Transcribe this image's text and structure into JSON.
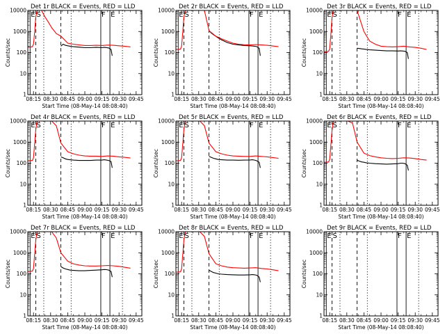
{
  "figure": {
    "type": "line",
    "panel_rows": 3,
    "panel_cols": 3,
    "ylabel": "Counts/sec",
    "xlabel": "Start Time (08-May-14 08:08:40)",
    "x_tick_labels": [
      "08:15",
      "08:30",
      "08:45",
      "09:00",
      "09:15",
      "09:30",
      "09:45"
    ],
    "x_tick_minutes": [
      0,
      15,
      30,
      45,
      60,
      75,
      90
    ],
    "x_range_minutes": [
      -5,
      95
    ],
    "y_scale": "log",
    "y_tick_labels": [
      "1",
      "10",
      "100",
      "1000",
      "10000"
    ],
    "ylim": [
      1,
      10000
    ],
    "colors": {
      "events": "#000000",
      "lld": "#ff0000"
    },
    "event_marks": [
      {
        "label": "E",
        "minute": -3,
        "style": "solid"
      },
      {
        "label": "S",
        "minute": 2,
        "style": "dashed"
      },
      {
        "label": "F",
        "minute": 59,
        "style": "solid"
      },
      {
        "label": "E",
        "minute": 67,
        "style": "solid"
      }
    ],
    "reference_lines": [
      {
        "minute": 9,
        "style": "dotted"
      },
      {
        "minute": 24,
        "style": "dashed"
      },
      {
        "minute": 33,
        "style": "dotted"
      },
      {
        "minute": 78,
        "style": "dotted"
      }
    ]
  },
  "chart_data": [
    {
      "title": "Det 1r BLACK = Events, RED = LLD",
      "type": "line",
      "has_data": true,
      "series": [
        {
          "name": "Events",
          "color": "#000000",
          "x": [
            24,
            26,
            28,
            30,
            32,
            35,
            40,
            45,
            50,
            55,
            60,
            62,
            64,
            66,
            68,
            69
          ],
          "y": [
            200,
            250,
            220,
            210,
            200,
            190,
            180,
            170,
            170,
            175,
            170,
            175,
            172,
            165,
            140,
            70
          ]
        },
        {
          "name": "LLD",
          "color": "#ff0000",
          "x": [
            -5,
            -3,
            -1,
            0,
            1,
            2,
            3,
            4,
            5,
            7,
            10,
            13,
            16,
            20,
            24,
            30,
            35,
            40,
            45,
            50,
            55,
            60,
            65,
            70,
            75,
            80,
            85
          ],
          "y": [
            180,
            180,
            190,
            250,
            900,
            5000,
            9000,
            10000,
            10000,
            10000,
            5000,
            2800,
            1500,
            800,
            600,
            280,
            250,
            230,
            215,
            215,
            220,
            215,
            225,
            220,
            210,
            200,
            185
          ]
        }
      ]
    },
    {
      "title": "Det 2r BLACK = Events, RED = LLD",
      "type": "line",
      "has_data": true,
      "series": [
        {
          "name": "Events",
          "color": "#000000",
          "x": [
            24,
            26,
            28,
            30,
            32,
            35,
            40,
            45,
            50,
            55,
            60,
            62,
            64,
            66,
            68,
            69
          ],
          "y": [
            1100,
            850,
            700,
            600,
            500,
            400,
            300,
            250,
            230,
            215,
            210,
            205,
            200,
            190,
            160,
            70
          ]
        },
        {
          "name": "LLD",
          "color": "#ff0000",
          "x": [
            -5,
            -3,
            -1,
            0,
            1,
            2,
            3,
            4,
            5,
            7,
            10,
            13,
            16,
            20,
            24,
            30,
            35,
            40,
            45,
            50,
            55,
            60,
            65,
            70,
            75,
            80,
            85
          ],
          "y": [
            140,
            140,
            145,
            200,
            900,
            5000,
            9000,
            10000,
            10000,
            10000,
            10000,
            10000,
            10000,
            10000,
            1100,
            600,
            450,
            350,
            280,
            250,
            235,
            230,
            240,
            230,
            220,
            205,
            190
          ]
        }
      ]
    },
    {
      "title": "Det 3r BLACK = Events, RED = LLD",
      "type": "line",
      "has_data": true,
      "series": [
        {
          "name": "Events",
          "color": "#000000",
          "x": [
            24,
            26,
            28,
            30,
            32,
            35,
            40,
            45,
            50,
            55,
            60,
            62,
            64,
            66,
            68,
            69
          ],
          "y": [
            160,
            155,
            150,
            145,
            140,
            135,
            130,
            125,
            120,
            120,
            118,
            120,
            118,
            115,
            100,
            50
          ]
        },
        {
          "name": "LLD",
          "color": "#ff0000",
          "x": [
            -5,
            -3,
            -1,
            0,
            1,
            2,
            3,
            4,
            5,
            7,
            10,
            13,
            16,
            20,
            24,
            30,
            35,
            40,
            45,
            50,
            55,
            60,
            65,
            70,
            75,
            80,
            85
          ],
          "y": [
            110,
            110,
            115,
            150,
            700,
            4500,
            9000,
            10000,
            10000,
            10000,
            10000,
            10000,
            10000,
            10000,
            10000,
            1000,
            350,
            250,
            200,
            190,
            185,
            190,
            200,
            185,
            175,
            160,
            140
          ]
        }
      ]
    },
    {
      "title": "Det 4r BLACK = Events, RED = LLD",
      "type": "line",
      "has_data": true,
      "series": [
        {
          "name": "Events",
          "color": "#000000",
          "x": [
            24,
            26,
            28,
            30,
            32,
            35,
            40,
            45,
            50,
            55,
            60,
            62,
            64,
            66,
            68,
            69
          ],
          "y": [
            200,
            180,
            160,
            150,
            145,
            140,
            135,
            135,
            135,
            140,
            140,
            145,
            140,
            135,
            120,
            60
          ]
        },
        {
          "name": "LLD",
          "color": "#ff0000",
          "x": [
            -5,
            -3,
            -1,
            0,
            1,
            2,
            3,
            4,
            5,
            7,
            10,
            13,
            16,
            20,
            24,
            30,
            35,
            40,
            45,
            50,
            55,
            60,
            65,
            70,
            75,
            80,
            85
          ],
          "y": [
            130,
            130,
            135,
            180,
            800,
            4000,
            9000,
            10000,
            10000,
            10000,
            10000,
            10000,
            10000,
            6000,
            900,
            350,
            280,
            240,
            220,
            215,
            215,
            210,
            220,
            215,
            200,
            190,
            175
          ]
        }
      ]
    },
    {
      "title": "Det 5r BLACK = Events, RED = LLD",
      "type": "line",
      "has_data": true,
      "series": [
        {
          "name": "Events",
          "color": "#000000",
          "x": [
            24,
            26,
            28,
            30,
            32,
            35,
            40,
            45,
            50,
            55,
            60,
            62,
            64,
            66,
            68,
            69
          ],
          "y": [
            210,
            190,
            170,
            160,
            150,
            145,
            140,
            140,
            138,
            140,
            142,
            145,
            140,
            130,
            110,
            60
          ]
        },
        {
          "name": "LLD",
          "color": "#ff0000",
          "x": [
            -5,
            -3,
            -1,
            0,
            1,
            2,
            3,
            4,
            5,
            7,
            10,
            13,
            16,
            20,
            24,
            30,
            35,
            40,
            45,
            50,
            55,
            60,
            65,
            70,
            75,
            80,
            85
          ],
          "y": [
            130,
            130,
            135,
            180,
            800,
            4000,
            9000,
            10000,
            10000,
            10000,
            10000,
            10000,
            10000,
            6000,
            900,
            350,
            280,
            240,
            220,
            215,
            210,
            210,
            220,
            210,
            200,
            185,
            170
          ]
        }
      ]
    },
    {
      "title": "Det 6r BLACK = Events, RED = LLD",
      "type": "line",
      "has_data": true,
      "series": [
        {
          "name": "Events",
          "color": "#000000",
          "x": [
            24,
            26,
            28,
            30,
            32,
            35,
            40,
            45,
            50,
            55,
            60,
            62,
            64,
            66,
            68,
            69
          ],
          "y": [
            140,
            125,
            115,
            110,
            105,
            100,
            95,
            92,
            90,
            92,
            95,
            100,
            100,
            95,
            80,
            45
          ]
        },
        {
          "name": "LLD",
          "color": "#ff0000",
          "x": [
            -5,
            -3,
            -1,
            0,
            1,
            2,
            3,
            4,
            5,
            7,
            10,
            13,
            16,
            20,
            24,
            30,
            35,
            40,
            45,
            50,
            55,
            60,
            65,
            70,
            75,
            80,
            85
          ],
          "y": [
            110,
            110,
            115,
            150,
            700,
            3500,
            9000,
            10000,
            10000,
            10000,
            10000,
            10000,
            10000,
            8000,
            1000,
            300,
            230,
            200,
            180,
            170,
            165,
            170,
            180,
            175,
            165,
            150,
            140
          ]
        }
      ]
    },
    {
      "title": "Det 7r BLACK = Events, RED = LLD",
      "type": "line",
      "has_data": true,
      "series": [
        {
          "name": "Events",
          "color": "#000000",
          "x": [
            24,
            26,
            28,
            30,
            32,
            35,
            40,
            45,
            50,
            55,
            60,
            62,
            64,
            66,
            68,
            69
          ],
          "y": [
            220,
            190,
            170,
            160,
            150,
            145,
            140,
            140,
            145,
            150,
            155,
            160,
            158,
            150,
            130,
            70
          ]
        },
        {
          "name": "LLD",
          "color": "#ff0000",
          "x": [
            -5,
            -3,
            -1,
            0,
            1,
            2,
            3,
            4,
            5,
            7,
            10,
            13,
            16,
            20,
            24,
            30,
            35,
            40,
            45,
            50,
            55,
            60,
            65,
            70,
            75,
            80,
            85
          ],
          "y": [
            130,
            130,
            135,
            180,
            800,
            4000,
            9000,
            10000,
            10000,
            10000,
            10000,
            10000,
            10000,
            5000,
            1000,
            400,
            300,
            260,
            240,
            235,
            235,
            240,
            250,
            240,
            225,
            205,
            185
          ]
        }
      ]
    },
    {
      "title": "Det 8r BLACK = Events, RED = LLD",
      "type": "line",
      "has_data": true,
      "series": [
        {
          "name": "Events",
          "color": "#000000",
          "x": [
            24,
            26,
            28,
            30,
            32,
            35,
            40,
            45,
            50,
            55,
            60,
            62,
            64,
            66,
            68,
            69
          ],
          "y": [
            150,
            130,
            115,
            108,
            100,
            96,
            92,
            90,
            88,
            88,
            90,
            92,
            90,
            85,
            70,
            40
          ]
        },
        {
          "name": "LLD",
          "color": "#ff0000",
          "x": [
            -5,
            -3,
            -1,
            0,
            1,
            2,
            3,
            4,
            5,
            7,
            10,
            13,
            16,
            20,
            24,
            30,
            35,
            40,
            45,
            50,
            55,
            60,
            65,
            70,
            75,
            80,
            85
          ],
          "y": [
            120,
            120,
            125,
            170,
            800,
            4000,
            9000,
            10000,
            10000,
            10000,
            10000,
            10000,
            10000,
            6000,
            900,
            300,
            240,
            210,
            195,
            190,
            185,
            190,
            195,
            180,
            170,
            155,
            140
          ]
        }
      ]
    },
    {
      "title": "Det 9r BLACK = Events, RED = LLD",
      "type": "line",
      "has_data": false,
      "series": []
    }
  ]
}
